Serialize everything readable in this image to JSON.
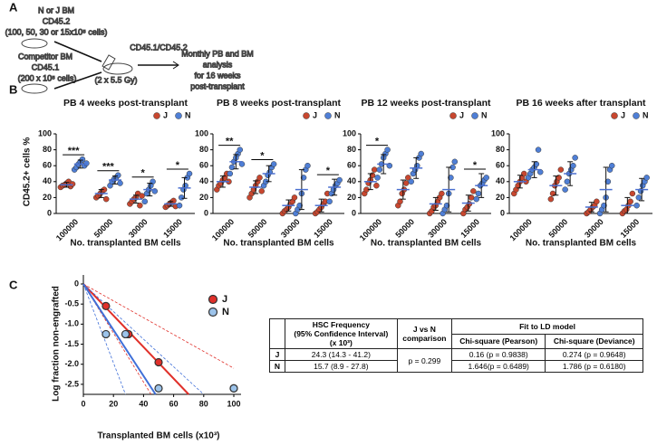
{
  "panel_labels": [
    "A",
    "B",
    "C"
  ],
  "schematic": {
    "donor": [
      "N or J BM",
      "CD45.2",
      "(100, 50, 30 or 15x10⁵ cells)"
    ],
    "competitor": [
      "Competitor BM",
      "CD45.1",
      "(200 x 10⁵ cells)"
    ],
    "recipient": "CD45.1/CD45.2",
    "irradiation": "(2 x 5.5 Gy)",
    "analysis": [
      "Monthly PB and BM",
      "analysis",
      "for 16 weeks",
      "post-transplant"
    ]
  },
  "chart_data": [
    {
      "type": "strip",
      "title": "PB 4 weeks post-transplant",
      "ylabel": "CD45.2+ cells %",
      "xlabel": "No. transplanted BM cells",
      "categories": [
        "100000",
        "50000",
        "30000",
        "15000"
      ],
      "ylim": [
        0,
        100
      ],
      "yticks": [
        0,
        20,
        40,
        60,
        80,
        100
      ],
      "legend": "upper right",
      "mean_color": "#4a6fd0",
      "series": [
        {
          "name": "J",
          "color": "#c8472f",
          "values": [
            [
              33,
              35,
              36,
              38,
              40,
              34,
              37
            ],
            [
              20,
              22,
              25,
              28,
              30,
              18
            ],
            [
              12,
              15,
              18,
              20,
              25,
              10,
              22
            ],
            [
              8,
              10,
              12,
              14,
              16,
              9
            ]
          ],
          "means": [
            36,
            25,
            18,
            12
          ],
          "errors": [
            3,
            5,
            5,
            3
          ]
        },
        {
          "name": "N",
          "color": "#4f7fd6",
          "values": [
            [
              55,
              58,
              62,
              65,
              68,
              60,
              63
            ],
            [
              35,
              40,
              43,
              45,
              48,
              38
            ],
            [
              15,
              25,
              30,
              35,
              40,
              28
            ],
            [
              10,
              20,
              30,
              35,
              45,
              50
            ]
          ],
          "means": [
            62,
            42,
            30,
            32
          ],
          "errors": [
            5,
            5,
            8,
            13
          ]
        }
      ],
      "annotations": [
        {
          "category": "100000",
          "text": "***"
        },
        {
          "category": "50000",
          "text": "***"
        },
        {
          "category": "30000",
          "text": "*"
        },
        {
          "category": "15000",
          "text": "*"
        }
      ]
    },
    {
      "type": "strip",
      "title": "PB 8 weeks post-transplant",
      "xlabel": "No. transplanted BM cells",
      "categories": [
        "100000",
        "50000",
        "30000",
        "15000"
      ],
      "ylim": [
        0,
        100
      ],
      "yticks": [
        0,
        20,
        40,
        60,
        80,
        100
      ],
      "legend": "upper right",
      "mean_color": "#4a6fd0",
      "series": [
        {
          "name": "J",
          "color": "#c8472f",
          "values": [
            [
              30,
              35,
              38,
              42,
              45,
              50,
              40
            ],
            [
              20,
              25,
              30,
              35,
              40,
              45,
              28
            ],
            [
              0,
              3,
              5,
              8,
              12,
              15,
              20
            ],
            [
              0,
              2,
              5,
              8,
              12,
              15,
              25
            ]
          ],
          "means": [
            40,
            33,
            10,
            10
          ],
          "errors": [
            7,
            8,
            7,
            8
          ]
        },
        {
          "name": "N",
          "color": "#4f7fd6",
          "values": [
            [
              50,
              58,
              65,
              70,
              75,
              80,
              62
            ],
            [
              35,
              40,
              48,
              52,
              58,
              62
            ],
            [
              0,
              5,
              10,
              25,
              45,
              55,
              60
            ],
            [
              15,
              25,
              30,
              35,
              38,
              42
            ]
          ],
          "means": [
            65,
            50,
            30,
            33
          ],
          "errors": [
            9,
            10,
            25,
            10
          ]
        }
      ],
      "annotations": [
        {
          "category": "100000",
          "text": "**"
        },
        {
          "category": "50000",
          "text": "*"
        },
        {
          "category": "15000",
          "text": "*"
        }
      ]
    },
    {
      "type": "strip",
      "title": "PB 12 weeks post-transplant",
      "xlabel": "No. transplanted BM cells",
      "categories": [
        "100000",
        "50000",
        "30000",
        "15000"
      ],
      "ylim": [
        0,
        100
      ],
      "yticks": [
        0,
        20,
        40,
        60,
        80,
        100
      ],
      "legend": "upper right",
      "mean_color": "#4a6fd0",
      "series": [
        {
          "name": "J",
          "color": "#c8472f",
          "values": [
            [
              25,
              30,
              38,
              42,
              48,
              55,
              35
            ],
            [
              10,
              15,
              25,
              30,
              38,
              45
            ],
            [
              0,
              3,
              8,
              10,
              15,
              20,
              25
            ],
            [
              0,
              5,
              8,
              12,
              20,
              28
            ]
          ],
          "means": [
            40,
            30,
            12,
            13
          ],
          "errors": [
            10,
            12,
            8,
            10
          ]
        },
        {
          "name": "N",
          "color": "#4f7fd6",
          "values": [
            [
              45,
              55,
              62,
              70,
              75,
              80,
              60
            ],
            [
              40,
              50,
              55,
              60,
              70,
              75
            ],
            [
              0,
              5,
              10,
              25,
              45,
              58,
              65
            ],
            [
              18,
              25,
              35,
              38,
              42,
              45
            ]
          ],
          "means": [
            62,
            57,
            30,
            35
          ],
          "errors": [
            12,
            13,
            28,
            15
          ]
        }
      ],
      "annotations": [
        {
          "category": "100000",
          "text": "*"
        },
        {
          "category": "15000",
          "text": "*"
        }
      ]
    },
    {
      "type": "strip",
      "title": "PB 16 weeks after transplant",
      "xlabel": "No. transplanted BM cells",
      "categories": [
        "100000",
        "50000",
        "30000",
        "15000"
      ],
      "ylim": [
        0,
        100
      ],
      "yticks": [
        0,
        20,
        40,
        60,
        80,
        100
      ],
      "legend": "upper right",
      "mean_color": "#4a6fd0",
      "series": [
        {
          "name": "J",
          "color": "#c8472f",
          "values": [
            [
              25,
              30,
              35,
              40,
              45,
              50,
              40
            ],
            [
              18,
              25,
              35,
              40,
              45,
              55
            ],
            [
              0,
              2,
              5,
              8,
              10,
              15
            ],
            [
              0,
              3,
              5,
              10,
              15,
              25
            ]
          ],
          "means": [
            40,
            35,
            8,
            10
          ],
          "errors": [
            8,
            12,
            6,
            10
          ]
        },
        {
          "name": "N",
          "color": "#4f7fd6",
          "values": [
            [
              45,
              50,
              55,
              58,
              62,
              80,
              52
            ],
            [
              30,
              40,
              50,
              55,
              60,
              70
            ],
            [
              0,
              5,
              10,
              20,
              40,
              55,
              60
            ],
            [
              10,
              20,
              28,
              35,
              40,
              45
            ]
          ],
          "means": [
            55,
            50,
            30,
            30
          ],
          "errors": [
            10,
            15,
            28,
            14
          ]
        }
      ],
      "annotations": []
    },
    {
      "type": "line",
      "ylabel": "Log fraction non-engrafted",
      "xlabel": "Transplanted BM cells (x10³)",
      "xlim": [
        0,
        100
      ],
      "ylim": [
        -2.75,
        0
      ],
      "xticks": [
        0,
        20,
        40,
        60,
        80,
        100
      ],
      "yticks": [
        0,
        -0.5,
        {
          "value": -1,
          "label": "-1.0"
        },
        -1.5,
        {
          "value": -2,
          "label": "-2.0"
        },
        -2.5
      ],
      "legend": "upper right",
      "series": [
        {
          "name": "J",
          "color": "#e0302a",
          "line_color": "#e0302a",
          "x": [
            15,
            30,
            50,
            100
          ],
          "values": [
            -0.55,
            -1.25,
            -1.95,
            -2.6
          ],
          "fit": {
            "x": [
              0,
              70
            ],
            "values": [
              0,
              -2.75
            ]
          },
          "ci_low": {
            "x": [
              0,
              45
            ],
            "values": [
              0,
              -2.75
            ]
          },
          "ci_high": {
            "x": [
              0,
              100
            ],
            "values": [
              0,
              -2.1
            ]
          }
        },
        {
          "name": "N",
          "color": "#9cc3ea",
          "line_color": "#3f6fd8",
          "x": [
            15,
            28,
            50,
            100
          ],
          "values": [
            -1.25,
            -1.25,
            -2.6,
            -2.6
          ],
          "fit": {
            "x": [
              0,
              48
            ],
            "values": [
              0,
              -2.75
            ]
          },
          "ci_low": {
            "x": [
              0,
              28
            ],
            "values": [
              0,
              -2.75
            ]
          },
          "ci_high": {
            "x": [
              0,
              80
            ],
            "values": [
              0,
              -2.75
            ]
          }
        }
      ]
    }
  ],
  "table": {
    "header": {
      "hsc": [
        "HSC Frequency",
        "(95% Confidence Interval)",
        "(x 10³)"
      ],
      "comparison": [
        "J vs N",
        "comparison"
      ],
      "fit": "Fit to LD model",
      "pearson": "Chi-square (Pearson)",
      "deviance": "Chi-square (Deviance)"
    },
    "rows": [
      [
        "J",
        "24.3 (14.3 - 41.2)",
        "0.16 (p = 0.9838)",
        "0.274 (p = 0.9648)"
      ],
      [
        "N",
        "15.7 (8.9 - 27.8)",
        "1.646(p = 0.6489)",
        "1.786 (p = 0.6180)"
      ]
    ],
    "comparison": "p = 0.299"
  }
}
